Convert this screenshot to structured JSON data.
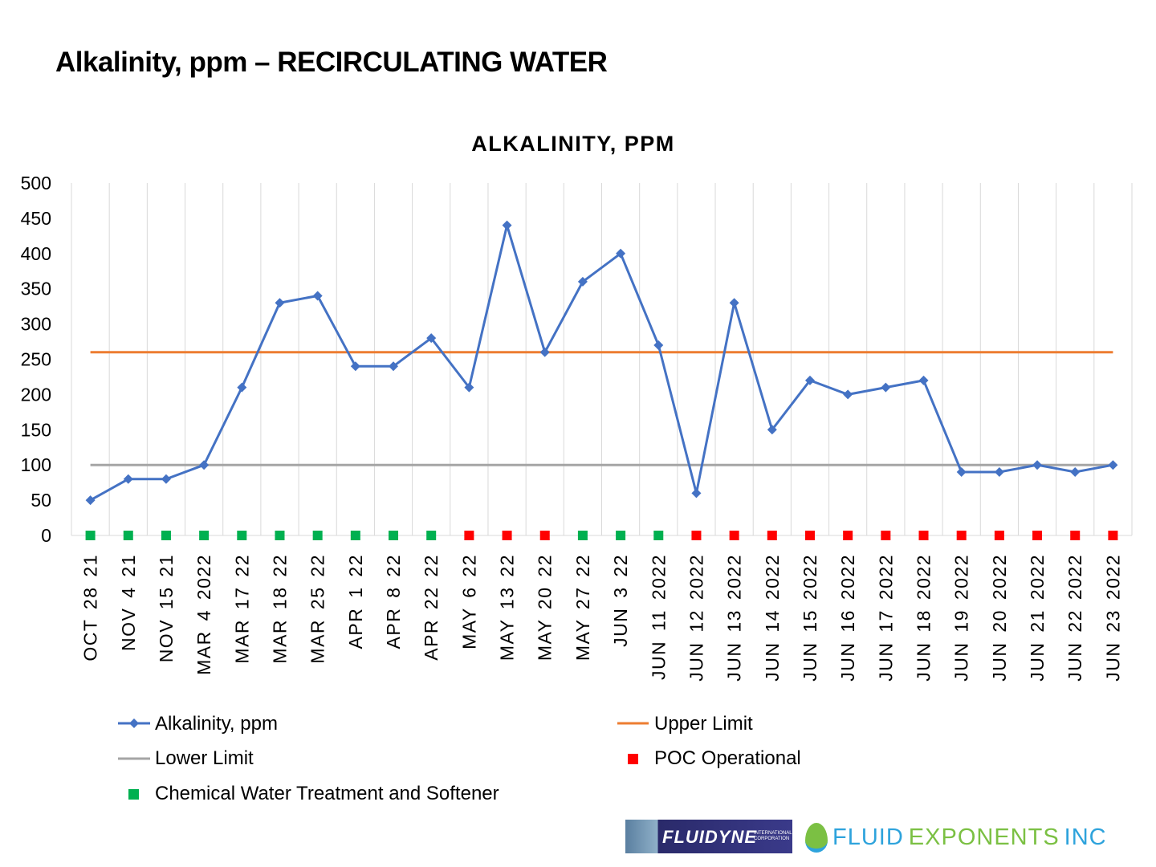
{
  "page": {
    "title": "Alkalinity, ppm – RECIRCULATING WATER"
  },
  "logos": {
    "fluidyne": {
      "name": "FLUIDYNE",
      "sub": "INTERNATIONAL CORPORATION"
    },
    "fluid_exponents": {
      "part1": "FLUID",
      "part2": "EXPONENTS",
      "part3": "INC",
      "colors": {
        "blue": "#2ea3dc",
        "green": "#7bc043"
      }
    }
  },
  "chart_data": {
    "type": "line",
    "title": "ALKALINITY,  PPM",
    "ylim": [
      0,
      500
    ],
    "yticks": [
      0,
      50,
      100,
      150,
      200,
      250,
      300,
      350,
      400,
      450,
      500
    ],
    "grid": "vertical",
    "legend_placement": "bottom",
    "categories": [
      "OCT 28 21",
      "NOV 4 21",
      "NOV 15 21",
      "MAR 4 2022",
      "MAR 17 22",
      "MAR 18 22",
      "MAR 25 22",
      "APR 1 22",
      "APR 8 22",
      "APR 22 22",
      "MAY 6 22",
      "MAY 13 22",
      "MAY 20 22",
      "MAY 27 22",
      "JUN 3 22",
      "JUN 11 2022",
      "JUN 12 2022",
      "JUN 13 2022",
      "JUN 14 2022",
      "JUN 15 2022",
      "JUN 16 2022",
      "JUN 17 2022",
      "JUN 18 2022",
      "JUN 19 2022",
      "JUN 20 2022",
      "JUN 21 2022",
      "JUN 22 2022",
      "JUN 23 2022"
    ],
    "series": [
      {
        "name": "Alkalinity, ppm",
        "color": "#4472c4",
        "values": [
          50,
          80,
          80,
          100,
          210,
          330,
          340,
          240,
          240,
          280,
          210,
          440,
          260,
          360,
          400,
          270,
          60,
          330,
          150,
          220,
          200,
          210,
          220,
          90,
          90,
          100,
          90,
          100
        ]
      },
      {
        "name": "Upper Limit",
        "color": "#ed7d31",
        "constant": 260
      },
      {
        "name": "Lower Limit",
        "color": "#a5a5a5",
        "constant": 100
      }
    ],
    "markers": {
      "legend": [
        {
          "name": "POC Operational",
          "color": "#ff0000",
          "key": "P"
        },
        {
          "name": "Chemical Water Treatment and Softener",
          "color": "#00b050",
          "key": "C"
        }
      ],
      "values": [
        "C",
        "C",
        "C",
        "C",
        "C",
        "C",
        "C",
        "C",
        "C",
        "C",
        "P",
        "P",
        "P",
        "C",
        "C",
        "C",
        "P",
        "P",
        "P",
        "P",
        "P",
        "P",
        "P",
        "P",
        "P",
        "P",
        "P",
        "P"
      ]
    }
  }
}
